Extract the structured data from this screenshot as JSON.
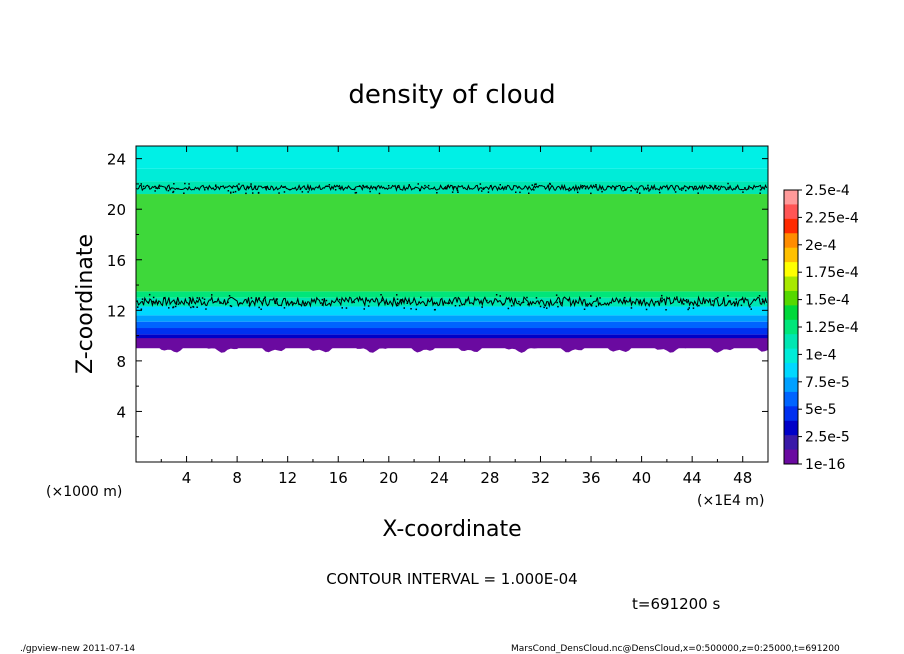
{
  "chart_data": {
    "type": "heatmap",
    "title": "density of cloud",
    "xlabel": "X-coordinate",
    "ylabel": "Z-coordinate",
    "x_unit_label": "(×1E4 m)",
    "y_unit_label": "(×1000 m)",
    "xlim": [
      0,
      50
    ],
    "ylim": [
      0,
      25
    ],
    "x_ticks": [
      "4",
      "8",
      "12",
      "16",
      "20",
      "24",
      "28",
      "32",
      "36",
      "40",
      "44",
      "48"
    ],
    "y_ticks": [
      "4",
      "8",
      "12",
      "16",
      "20",
      "24"
    ],
    "x_tick_values": [
      4,
      8,
      12,
      16,
      20,
      24,
      28,
      32,
      36,
      40,
      44,
      48
    ],
    "y_tick_values": [
      4,
      8,
      12,
      16,
      20,
      24
    ],
    "colorbar": {
      "labels": [
        "2.5e-4",
        "2.25e-4",
        "2e-4",
        "1.75e-4",
        "1.5e-4",
        "1.25e-4",
        "1e-4",
        "7.5e-5",
        "5e-5",
        "2.5e-5",
        "1e-16"
      ],
      "colors": [
        "#ff9a9a",
        "#ff5555",
        "#ff2a00",
        "#ff8c00",
        "#ffc000",
        "#ffff00",
        "#a8e800",
        "#55d800",
        "#00d83a",
        "#00e67a",
        "#00e6b2",
        "#00ecd8",
        "#00d8ff",
        "#00a0ff",
        "#0064ff",
        "#0030f0",
        "#0000c8",
        "#3a1aa8",
        "#6a0aa0"
      ]
    },
    "bands": [
      {
        "z_from": 9.0,
        "z_to": 9.6,
        "color": "#6a0aa0"
      },
      {
        "z_from": 9.6,
        "z_to": 10.1,
        "color": "#0000c8"
      },
      {
        "z_from": 10.1,
        "z_to": 10.6,
        "color": "#0030f0"
      },
      {
        "z_from": 10.6,
        "z_to": 11.1,
        "color": "#0064ff"
      },
      {
        "z_from": 11.1,
        "z_to": 11.6,
        "color": "#00a0ff"
      },
      {
        "z_from": 11.6,
        "z_to": 12.3,
        "color": "#00d8ff"
      },
      {
        "z_from": 12.3,
        "z_to": 13.0,
        "color": "#00e6b2"
      },
      {
        "z_from": 13.0,
        "z_to": 13.5,
        "color": "#00e67a"
      },
      {
        "z_from": 13.5,
        "z_to": 21.2,
        "color": "#3ed83a"
      },
      {
        "z_from": 21.2,
        "z_to": 22.2,
        "color": "#00e6b2"
      },
      {
        "z_from": 22.2,
        "z_to": 23.2,
        "color": "#00ecd8"
      },
      {
        "z_from": 23.2,
        "z_to": 25.0,
        "color": "#00f0e6"
      }
    ],
    "contour_levels_z": [
      12.7,
      21.7
    ]
  },
  "annotations": {
    "contour_interval": "CONTOUR INTERVAL = 1.000E-04",
    "time": "t=691200 s",
    "footer_left": "./gpview-new  2011-07-14",
    "footer_right": "MarsCond_DensCloud.nc@DensCloud,x=0:500000,z=0:25000,t=691200"
  }
}
